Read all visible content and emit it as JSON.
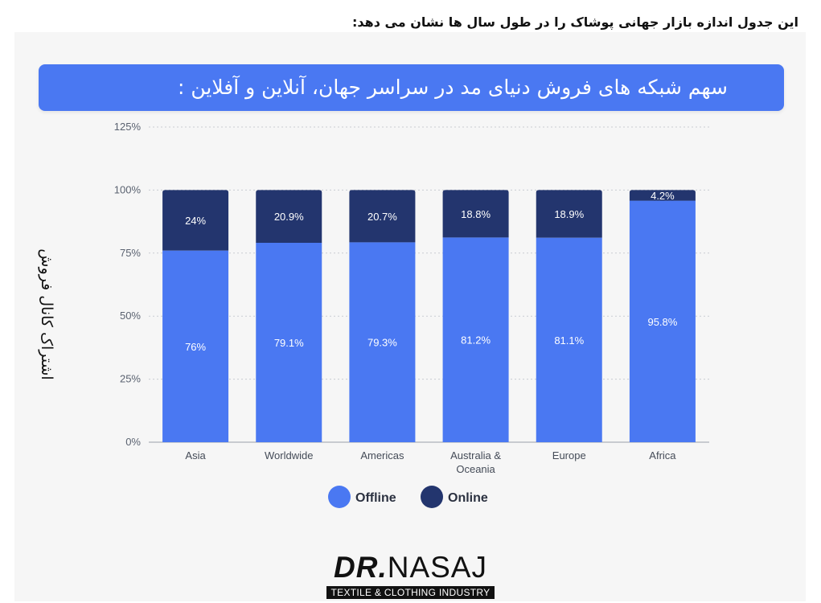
{
  "header": {
    "caption": "این جدول اندازه بازار جهانی پوشاک را در طول سال ها نشان می دهد:"
  },
  "chart_data": {
    "type": "bar",
    "stacked": true,
    "title": "سهم شبکه های فروش دنیای مد در سراسر جهان، آنلاین و آفلاین :",
    "xlabel": "",
    "ylabel": "اشتراک کانال فروش",
    "ylim": [
      0,
      125
    ],
    "yticks": [
      "0%",
      "25%",
      "50%",
      "75%",
      "100%",
      "125%"
    ],
    "grid": true,
    "legend_position": "bottom",
    "categories": [
      "Asia",
      "Worldwide",
      "Americas",
      "Australia & Oceania",
      "Europe",
      "Africa"
    ],
    "category_lines": [
      [
        "Asia"
      ],
      [
        "Worldwide"
      ],
      [
        "Americas"
      ],
      [
        "Australia &",
        "Oceania"
      ],
      [
        "Europe"
      ],
      [
        "Africa"
      ]
    ],
    "series": [
      {
        "name": "Offline",
        "color": "#4a78f2",
        "values": [
          76,
          79.1,
          79.3,
          81.2,
          81.1,
          95.8
        ],
        "labels": [
          "76%",
          "79.1%",
          "79.3%",
          "81.2%",
          "81.1%",
          "95.8%"
        ]
      },
      {
        "name": "Online",
        "color": "#23356e",
        "values": [
          24,
          20.9,
          20.7,
          18.8,
          18.9,
          4.2
        ],
        "labels": [
          "24%",
          "20.9%",
          "20.7%",
          "18.8%",
          "18.9%",
          "4.2%"
        ]
      }
    ]
  },
  "branding": {
    "name_bold": "DR.",
    "name_regular": "NASAJ",
    "tagline": "TEXTILE & CLOTHING INDUSTRY"
  }
}
